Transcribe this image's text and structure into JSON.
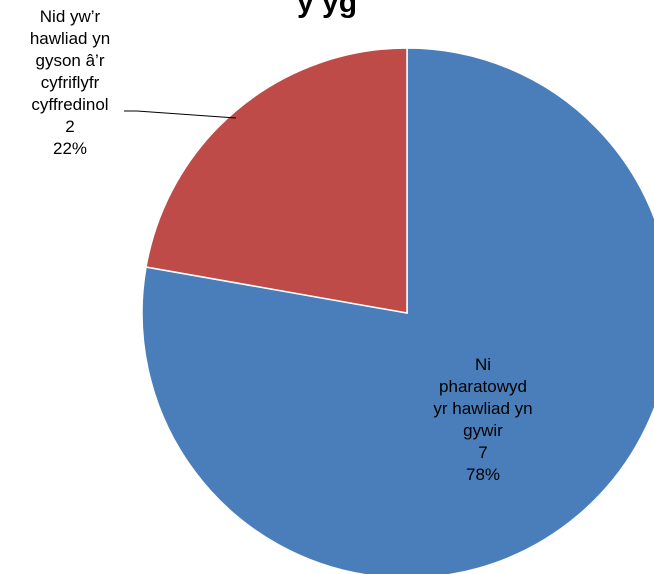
{
  "chart_data": {
    "type": "pie",
    "title": "y      yg",
    "slices": [
      {
        "label": "Ni pharatowyd yr hawliad yn gywir",
        "label_lines": [
          "Ni",
          "pharatowyd",
          "yr hawliad  yn",
          "gywir"
        ],
        "value": 7,
        "value_label": "7",
        "percent_label": "78%",
        "color": "#4A7EBB"
      },
      {
        "label": "Nid yw’r hawliad yn gyson â’r cyfriflyfr cyffredinol",
        "label_lines": [
          "Nid yw’r",
          "hawliad yn",
          "gyson â’r",
          "cyfriflyfr",
          "cyffredinol"
        ],
        "value": 2,
        "value_label": "2",
        "percent_label": "22%",
        "color": "#BE4B48"
      }
    ],
    "start_angle_deg": 0,
    "direction": "clockwise",
    "legend": "none"
  }
}
